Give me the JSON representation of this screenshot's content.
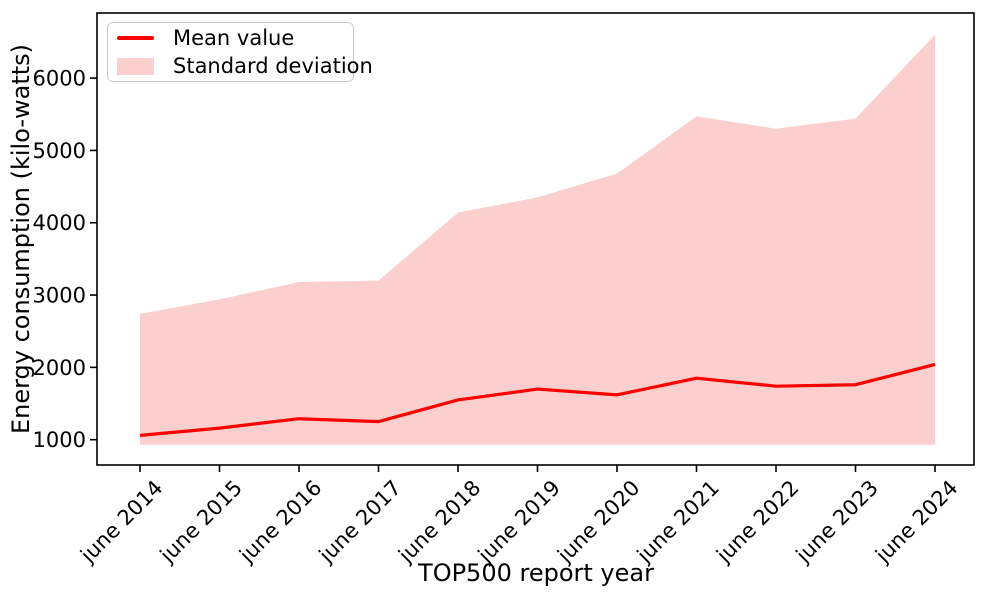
{
  "figure": {
    "background": "#ffffff",
    "text_color": "#000000"
  },
  "chart_data": {
    "type": "line",
    "title": "",
    "xlabel": "TOP500 report year",
    "ylabel": "Energy consumption (kilo-watts)",
    "categories": [
      "june 2014",
      "june 2015",
      "june 2016",
      "june 2017",
      "june 2018",
      "june 2019",
      "june 2020",
      "june 2021",
      "june 2022",
      "june 2023",
      "june 2024"
    ],
    "series": [
      {
        "name": "Mean value",
        "type": "line",
        "color": "#ff0000",
        "values": [
          1060,
          1160,
          1290,
          1250,
          1550,
          1700,
          1620,
          1850,
          1740,
          1760,
          2040
        ]
      },
      {
        "name": "Standard deviation",
        "type": "band",
        "color": "#fccfcf",
        "upper": [
          2740,
          2940,
          3180,
          3200,
          4140,
          4350,
          4680,
          5470,
          5300,
          5440,
          6600
        ],
        "lower": [
          930,
          930,
          930,
          930,
          930,
          930,
          930,
          930,
          930,
          930,
          930
        ]
      }
    ],
    "yticks": [
      1000,
      2000,
      3000,
      4000,
      5000,
      6000
    ],
    "ylim": [
      650,
      6900
    ],
    "grid": false,
    "legend_position": "upper-left",
    "axis_color": "#000000",
    "tick_label_rotation_x": 45
  },
  "legend": {
    "items": [
      {
        "label": "Mean value",
        "swatch": "line-swatch",
        "color": "#ff0000"
      },
      {
        "label": "Standard deviation",
        "swatch": "patch-swatch",
        "color": "#fccfcf"
      }
    ]
  }
}
